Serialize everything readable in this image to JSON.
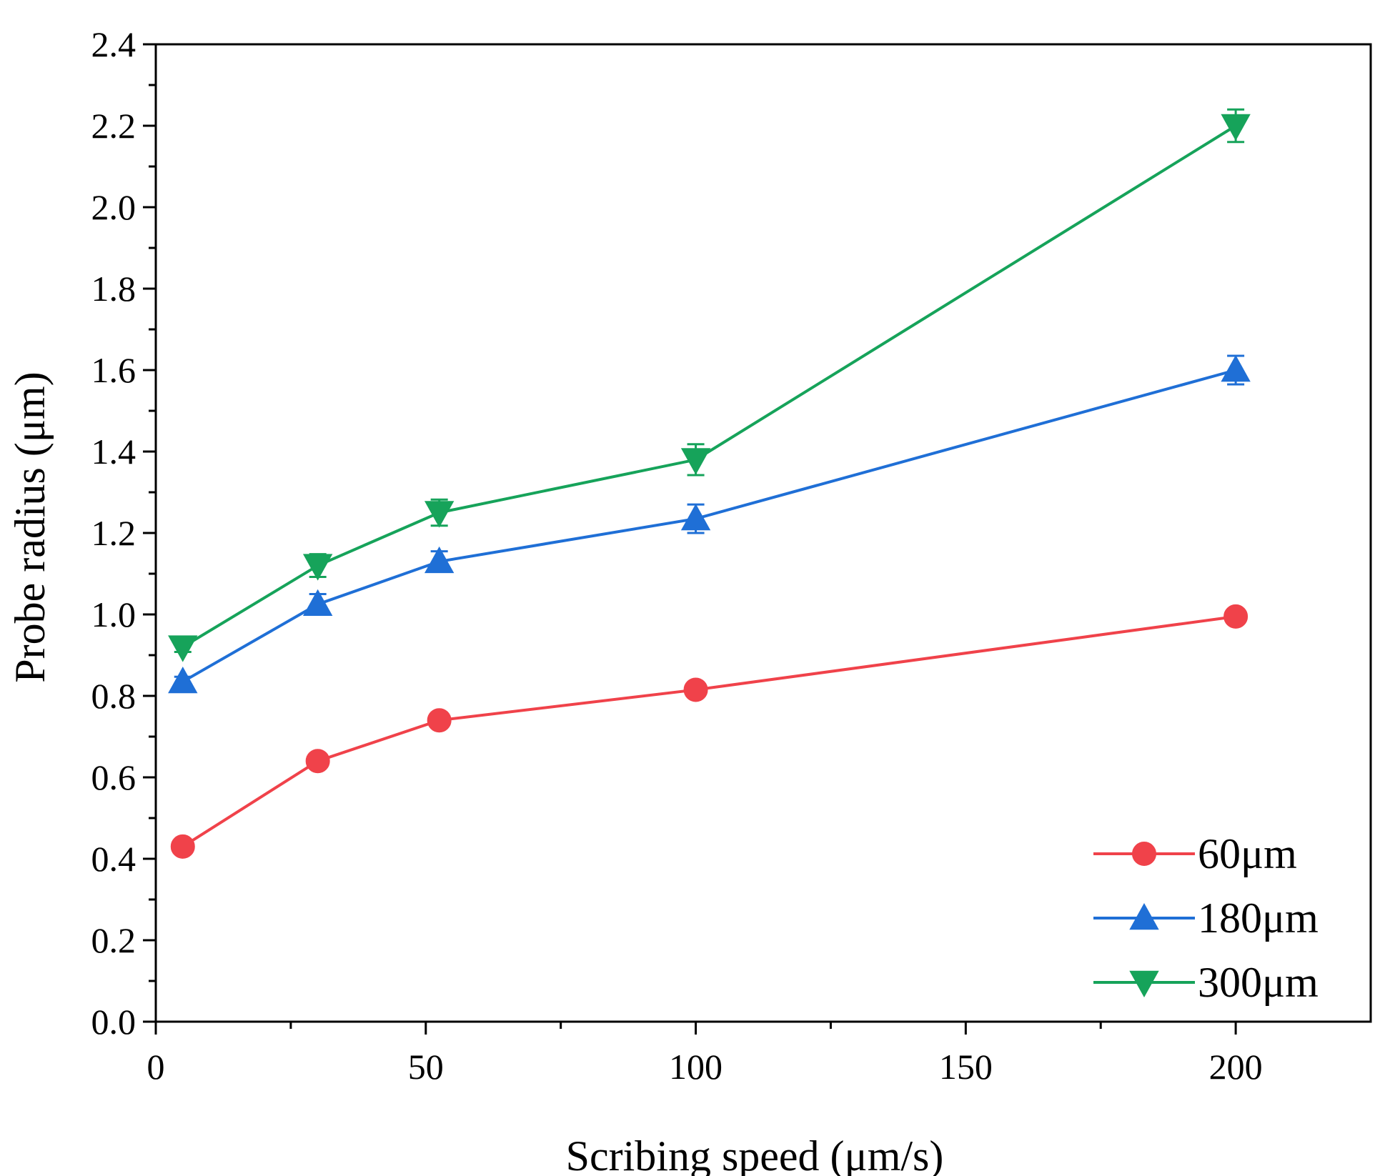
{
  "chart_data": {
    "type": "line",
    "title": "",
    "xlabel": "Scribing speed (μm/s)",
    "ylabel": "Probe radius (μm)",
    "xlim": [
      0,
      225
    ],
    "ylim": [
      0.0,
      2.4
    ],
    "xticks": [
      0,
      50,
      100,
      150,
      200
    ],
    "xtick_labels": [
      "0",
      "50",
      "100",
      "150",
      "200"
    ],
    "yticks": [
      0.0,
      0.2,
      0.4,
      0.6,
      0.8,
      1.0,
      1.2,
      1.4,
      1.6,
      1.8,
      2.0,
      2.2,
      2.4
    ],
    "ytick_labels": [
      "0.0",
      "0.2",
      "0.4",
      "0.6",
      "0.8",
      "1.0",
      "1.2",
      "1.4",
      "1.6",
      "1.8",
      "2.0",
      "2.2",
      "2.4"
    ],
    "grid": false,
    "legend_position": "bottom-right",
    "series": [
      {
        "name": "60μm",
        "color": "#f0424a",
        "marker": "circle",
        "x": [
          5,
          30,
          52.5,
          100,
          200
        ],
        "values": [
          0.43,
          0.64,
          0.74,
          0.815,
          0.995
        ],
        "errors": [
          0.01,
          0.01,
          0.012,
          0.015,
          0.015
        ]
      },
      {
        "name": "180μm",
        "color": "#1f6fd6",
        "marker": "triangle-up",
        "x": [
          5,
          30,
          52.5,
          100,
          200
        ],
        "values": [
          0.835,
          1.025,
          1.13,
          1.235,
          1.6
        ],
        "errors": [
          0.012,
          0.025,
          0.025,
          0.035,
          0.035
        ]
      },
      {
        "name": "300μm",
        "color": "#16a35a",
        "marker": "triangle-down",
        "x": [
          5,
          30,
          52.5,
          100,
          200
        ],
        "values": [
          0.92,
          1.12,
          1.25,
          1.38,
          2.2
        ],
        "errors": [
          0.012,
          0.028,
          0.032,
          0.038,
          0.04
        ]
      }
    ]
  }
}
